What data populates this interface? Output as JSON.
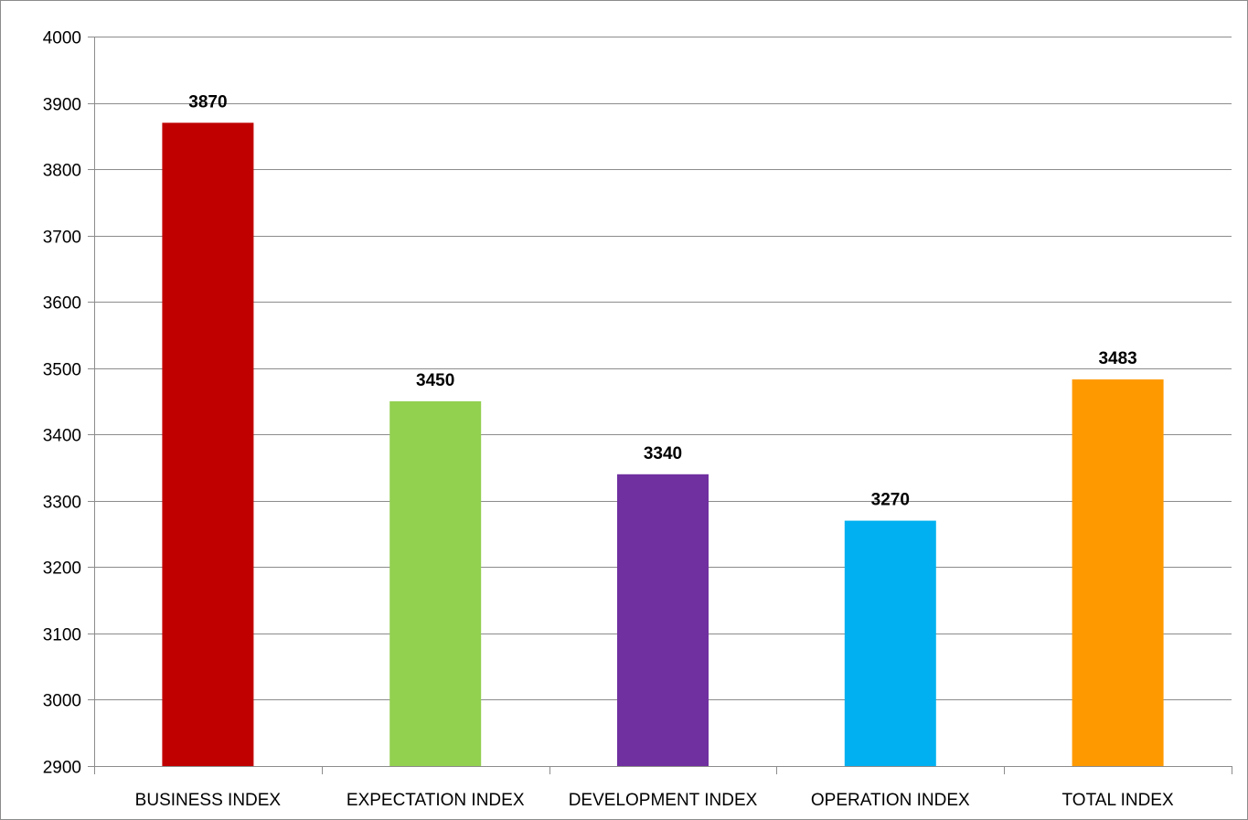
{
  "chart_data": {
    "type": "bar",
    "title": "",
    "xlabel": "",
    "ylabel": "",
    "categories": [
      "BUSINESS INDEX",
      "EXPECTATION INDEX",
      "DEVELOPMENT INDEX",
      "OPERATION INDEX",
      "TOTAL INDEX"
    ],
    "values": [
      3870,
      3450,
      3340,
      3270,
      3483
    ],
    "colors": [
      "#C00000",
      "#92D050",
      "#7030A0",
      "#00B0F0",
      "#FF9900"
    ],
    "ylim": [
      2900,
      4000
    ],
    "yticks": [
      2900,
      3000,
      3100,
      3200,
      3300,
      3400,
      3500,
      3600,
      3700,
      3800,
      3900,
      4000
    ],
    "grid": true,
    "data_labels": true,
    "legend": "none"
  }
}
